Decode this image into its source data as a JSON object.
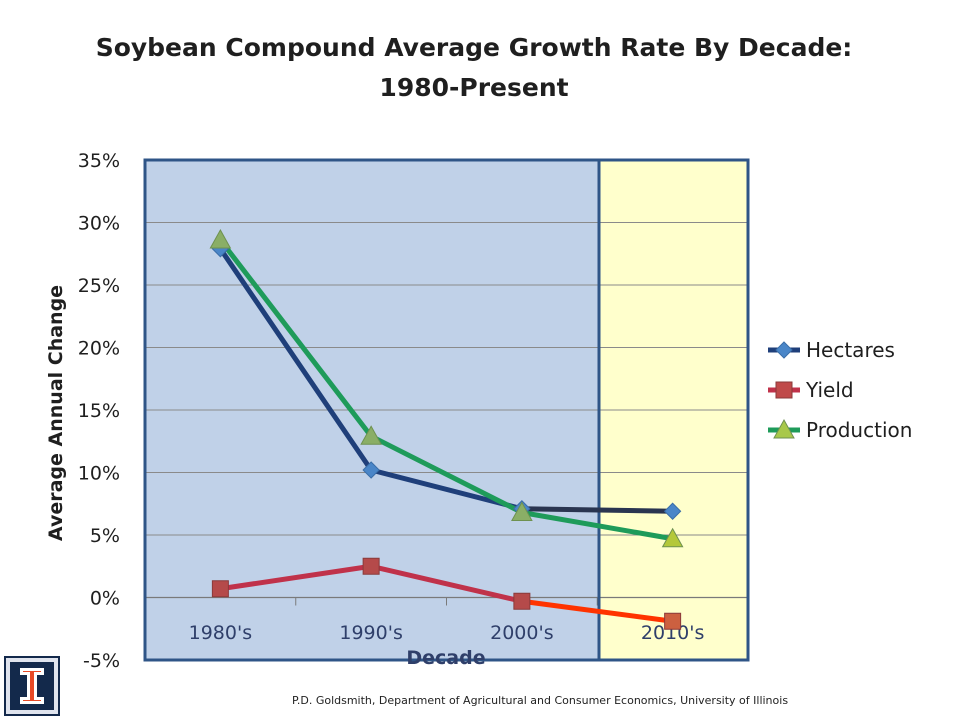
{
  "title_line1": "Soybean Compound Average Growth Rate By Decade:",
  "title_line2": "1980-Present",
  "footer": "P.D. Goldsmith, Department of Agricultural and Consumer Economics, University of Illinois",
  "colors": {
    "hectares": "#1f3f7a",
    "hectares_marker": "#4a86c8",
    "yield": "#c0324a",
    "yield_recent": "#ff3300",
    "yield_marker": "#b54a4a",
    "production": "#1e9b5a",
    "production_marker": "#8aae66",
    "historic_bg": "#c0d1e8",
    "recent_bg": "#ffffcc",
    "frame": "#2f5587"
  },
  "chart_data": {
    "type": "line",
    "title": "Soybean Compound Average Growth Rate By Decade: 1980-Present",
    "xlabel": "Decade",
    "ylabel": "Average Annual Change",
    "categories": [
      "1980's",
      "1990's",
      "2000's",
      "2010's"
    ],
    "ylim": [
      -5,
      35
    ],
    "yticks": [
      "35%",
      "30%",
      "25%",
      "20%",
      "15%",
      "10%",
      "5%",
      "0%",
      "-5%"
    ],
    "grid": true,
    "legend": "right",
    "highlighted_category": "2010's",
    "series": [
      {
        "name": "Hectares",
        "marker": "diamond",
        "values": [
          27.9,
          10.2,
          7.1,
          6.9
        ]
      },
      {
        "name": "Yield",
        "marker": "square",
        "values": [
          0.7,
          2.5,
          -0.3,
          -1.9
        ]
      },
      {
        "name": "Production",
        "marker": "triangle",
        "values": [
          28.6,
          12.9,
          6.8,
          4.7
        ]
      }
    ]
  }
}
